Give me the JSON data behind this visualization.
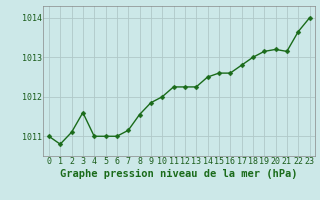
{
  "x": [
    0,
    1,
    2,
    3,
    4,
    5,
    6,
    7,
    8,
    9,
    10,
    11,
    12,
    13,
    14,
    15,
    16,
    17,
    18,
    19,
    20,
    21,
    22,
    23
  ],
  "y": [
    1011.0,
    1010.8,
    1011.1,
    1011.6,
    1011.0,
    1011.0,
    1011.0,
    1011.15,
    1011.55,
    1011.85,
    1012.0,
    1012.25,
    1012.25,
    1012.25,
    1012.5,
    1012.6,
    1012.6,
    1012.8,
    1013.0,
    1013.15,
    1013.2,
    1013.15,
    1013.65,
    1014.0
  ],
  "line_color": "#1a6b1a",
  "marker_color": "#1a6b1a",
  "bg_color": "#cce8e8",
  "grid_color": "#b0c8c8",
  "xlabel": "Graphe pression niveau de la mer (hPa)",
  "xlabel_color": "#1a6b1a",
  "ytick_labels": [
    "1011",
    "1012",
    "1013",
    "1014"
  ],
  "ytick_values": [
    1011,
    1012,
    1013,
    1014
  ],
  "ylim": [
    1010.5,
    1014.3
  ],
  "xlim": [
    -0.5,
    23.5
  ],
  "xtick_labels": [
    "0",
    "1",
    "2",
    "3",
    "4",
    "5",
    "6",
    "7",
    "8",
    "9",
    "10",
    "11",
    "12",
    "13",
    "14",
    "15",
    "16",
    "17",
    "18",
    "19",
    "20",
    "21",
    "22",
    "23"
  ],
  "title_color": "#1a5c1a",
  "axis_label_fontsize": 7.5,
  "tick_fontsize": 6.0,
  "marker_size": 2.5,
  "line_width": 1.0
}
